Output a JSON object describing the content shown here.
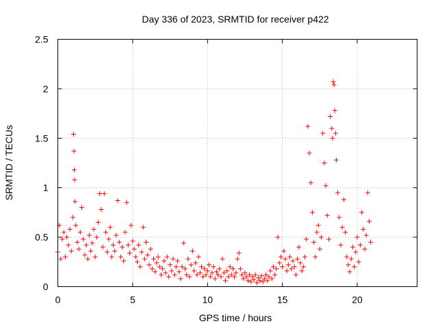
{
  "chart_data": {
    "type": "scatter",
    "title": "Day 336 of 2023, SRMTID for receiver p422",
    "xlabel": "GPS time / hours",
    "ylabel": "SRMTID / TECUs",
    "xlim": [
      0,
      24
    ],
    "ylim": [
      0,
      2.5
    ],
    "xticks": [
      0,
      5,
      10,
      15,
      20
    ],
    "xtick_labels": [
      "0",
      "5",
      "10",
      "15",
      "20"
    ],
    "yticks": [
      0,
      0.5,
      1,
      1.5,
      2,
      2.5
    ],
    "ytick_labels": [
      "0",
      "0.5",
      "1",
      "1.5",
      "2",
      "2.5"
    ],
    "grid": true,
    "marker": "+",
    "color": "#ff0000",
    "series": [
      {
        "name": "SRMTID",
        "points": [
          [
            0.0,
            0.35
          ],
          [
            0.1,
            0.62
          ],
          [
            0.2,
            0.28
          ],
          [
            0.3,
            0.48
          ],
          [
            0.4,
            0.55
          ],
          [
            0.5,
            0.3
          ],
          [
            0.6,
            0.5
          ],
          [
            0.7,
            0.42
          ],
          [
            0.8,
            0.58
          ],
          [
            0.9,
            0.36
          ],
          [
            1.0,
            0.7
          ],
          [
            1.05,
            1.54
          ],
          [
            1.08,
            1.37
          ],
          [
            1.1,
            1.18
          ],
          [
            1.12,
            1.08
          ],
          [
            1.15,
            0.86
          ],
          [
            1.2,
            0.62
          ],
          [
            1.3,
            0.45
          ],
          [
            1.4,
            0.38
          ],
          [
            1.5,
            0.55
          ],
          [
            1.6,
            0.8
          ],
          [
            1.7,
            0.48
          ],
          [
            1.8,
            0.32
          ],
          [
            1.9,
            0.42
          ],
          [
            2.0,
            0.28
          ],
          [
            2.1,
            0.52
          ],
          [
            2.2,
            0.36
          ],
          [
            2.3,
            0.44
          ],
          [
            2.4,
            0.58
          ],
          [
            2.5,
            0.3
          ],
          [
            2.6,
            0.5
          ],
          [
            2.7,
            0.65
          ],
          [
            2.8,
            0.94
          ],
          [
            2.9,
            0.78
          ],
          [
            3.0,
            0.4
          ],
          [
            3.1,
            0.94
          ],
          [
            3.2,
            0.55
          ],
          [
            3.3,
            0.35
          ],
          [
            3.4,
            0.48
          ],
          [
            3.5,
            0.6
          ],
          [
            3.6,
            0.3
          ],
          [
            3.7,
            0.42
          ],
          [
            3.8,
            0.36
          ],
          [
            3.9,
            0.52
          ],
          [
            4.0,
            0.87
          ],
          [
            4.1,
            0.45
          ],
          [
            4.2,
            0.3
          ],
          [
            4.3,
            0.4
          ],
          [
            4.4,
            0.26
          ],
          [
            4.5,
            0.55
          ],
          [
            4.6,
            0.85
          ],
          [
            4.7,
            0.42
          ],
          [
            4.8,
            0.34
          ],
          [
            4.9,
            0.62
          ],
          [
            5.0,
            0.46
          ],
          [
            5.1,
            0.38
          ],
          [
            5.2,
            0.3
          ],
          [
            5.3,
            0.25
          ],
          [
            5.4,
            0.42
          ],
          [
            5.5,
            0.2
          ],
          [
            5.6,
            0.35
          ],
          [
            5.7,
            0.6
          ],
          [
            5.8,
            0.28
          ],
          [
            5.9,
            0.45
          ],
          [
            6.0,
            0.32
          ],
          [
            6.1,
            0.22
          ],
          [
            6.2,
            0.38
          ],
          [
            6.3,
            0.18
          ],
          [
            6.4,
            0.28
          ],
          [
            6.5,
            0.15
          ],
          [
            6.6,
            0.24
          ],
          [
            6.7,
            0.3
          ],
          [
            6.8,
            0.2
          ],
          [
            6.9,
            0.12
          ],
          [
            7.0,
            0.18
          ],
          [
            7.1,
            0.26
          ],
          [
            7.2,
            0.14
          ],
          [
            7.3,
            0.3
          ],
          [
            7.4,
            0.1
          ],
          [
            7.5,
            0.22
          ],
          [
            7.6,
            0.16
          ],
          [
            7.7,
            0.28
          ],
          [
            7.8,
            0.12
          ],
          [
            7.9,
            0.2
          ],
          [
            8.0,
            0.26
          ],
          [
            8.1,
            0.15
          ],
          [
            8.2,
            0.08
          ],
          [
            8.3,
            0.2
          ],
          [
            8.4,
            0.44
          ],
          [
            8.5,
            0.18
          ],
          [
            8.6,
            0.12
          ],
          [
            8.7,
            0.28
          ],
          [
            8.8,
            0.1
          ],
          [
            8.9,
            0.22
          ],
          [
            9.0,
            0.36
          ],
          [
            9.1,
            0.16
          ],
          [
            9.2,
            0.24
          ],
          [
            9.3,
            0.12
          ],
          [
            9.4,
            0.3
          ],
          [
            9.5,
            0.14
          ],
          [
            9.6,
            0.2
          ],
          [
            9.7,
            0.1
          ],
          [
            9.8,
            0.18
          ],
          [
            9.9,
            0.12
          ],
          [
            10.0,
            0.16
          ],
          [
            10.1,
            0.22
          ],
          [
            10.2,
            0.1
          ],
          [
            10.3,
            0.14
          ],
          [
            10.4,
            0.2
          ],
          [
            10.5,
            0.08
          ],
          [
            10.6,
            0.15
          ],
          [
            10.7,
            0.12
          ],
          [
            10.8,
            0.18
          ],
          [
            10.9,
            0.1
          ],
          [
            11.0,
            0.28
          ],
          [
            11.1,
            0.14
          ],
          [
            11.2,
            0.06
          ],
          [
            11.3,
            0.16
          ],
          [
            11.4,
            0.1
          ],
          [
            11.5,
            0.2
          ],
          [
            11.6,
            0.12
          ],
          [
            11.7,
            0.18
          ],
          [
            11.8,
            0.1
          ],
          [
            11.9,
            0.14
          ],
          [
            12.0,
            0.28
          ],
          [
            12.1,
            0.34
          ],
          [
            12.2,
            0.18
          ],
          [
            12.3,
            0.12
          ],
          [
            12.4,
            0.08
          ],
          [
            12.5,
            0.14
          ],
          [
            12.6,
            0.1
          ],
          [
            12.7,
            0.06
          ],
          [
            12.8,
            0.12
          ],
          [
            12.9,
            0.05
          ],
          [
            13.0,
            0.1
          ],
          [
            13.1,
            0.07
          ],
          [
            13.2,
            0.12
          ],
          [
            13.3,
            0.04
          ],
          [
            13.4,
            0.09
          ],
          [
            13.5,
            0.06
          ],
          [
            13.6,
            0.11
          ],
          [
            13.7,
            0.05
          ],
          [
            13.8,
            0.08
          ],
          [
            13.9,
            0.12
          ],
          [
            14.0,
            0.06
          ],
          [
            14.1,
            0.1
          ],
          [
            14.2,
            0.16
          ],
          [
            14.3,
            0.08
          ],
          [
            14.4,
            0.2
          ],
          [
            14.5,
            0.12
          ],
          [
            14.6,
            0.18
          ],
          [
            14.7,
            0.5
          ],
          [
            14.8,
            0.24
          ],
          [
            14.9,
            0.3
          ],
          [
            15.0,
            0.2
          ],
          [
            15.1,
            0.36
          ],
          [
            15.2,
            0.28
          ],
          [
            15.3,
            0.16
          ],
          [
            15.4,
            0.22
          ],
          [
            15.5,
            0.3
          ],
          [
            15.6,
            0.18
          ],
          [
            15.7,
            0.26
          ],
          [
            15.8,
            0.2
          ],
          [
            15.9,
            0.12
          ],
          [
            16.0,
            0.28
          ],
          [
            16.1,
            0.4
          ],
          [
            16.2,
            0.24
          ],
          [
            16.3,
            0.16
          ],
          [
            16.4,
            0.2
          ],
          [
            16.5,
            0.3
          ],
          [
            16.6,
            0.48
          ],
          [
            16.7,
            1.62
          ],
          [
            16.8,
            1.35
          ],
          [
            16.9,
            1.05
          ],
          [
            17.0,
            0.75
          ],
          [
            17.1,
            0.45
          ],
          [
            17.2,
            0.3
          ],
          [
            17.3,
            0.55
          ],
          [
            17.4,
            0.62
          ],
          [
            17.5,
            0.38
          ],
          [
            17.6,
            0.5
          ],
          [
            17.7,
            1.55
          ],
          [
            17.8,
            1.25
          ],
          [
            17.9,
            1.02
          ],
          [
            18.0,
            0.72
          ],
          [
            18.1,
            0.48
          ],
          [
            18.2,
            1.72
          ],
          [
            18.3,
            1.6
          ],
          [
            18.35,
            1.5
          ],
          [
            18.4,
            2.07
          ],
          [
            18.45,
            2.04
          ],
          [
            18.5,
            1.78
          ],
          [
            18.55,
            1.55
          ],
          [
            18.6,
            1.28
          ],
          [
            18.7,
            0.95
          ],
          [
            18.8,
            0.7
          ],
          [
            18.9,
            0.42
          ],
          [
            19.0,
            0.6
          ],
          [
            19.1,
            0.88
          ],
          [
            19.2,
            0.55
          ],
          [
            19.3,
            0.3
          ],
          [
            19.4,
            0.22
          ],
          [
            19.5,
            0.15
          ],
          [
            19.6,
            0.28
          ],
          [
            19.7,
            0.4
          ],
          [
            19.8,
            0.2
          ],
          [
            19.9,
            0.35
          ],
          [
            20.0,
            0.5
          ],
          [
            20.1,
            0.25
          ],
          [
            20.2,
            0.42
          ],
          [
            20.3,
            0.75
          ],
          [
            20.4,
            0.58
          ],
          [
            20.5,
            0.38
          ],
          [
            20.6,
            0.52
          ],
          [
            20.7,
            0.95
          ],
          [
            20.8,
            0.66
          ],
          [
            20.9,
            0.45
          ]
        ]
      }
    ]
  }
}
